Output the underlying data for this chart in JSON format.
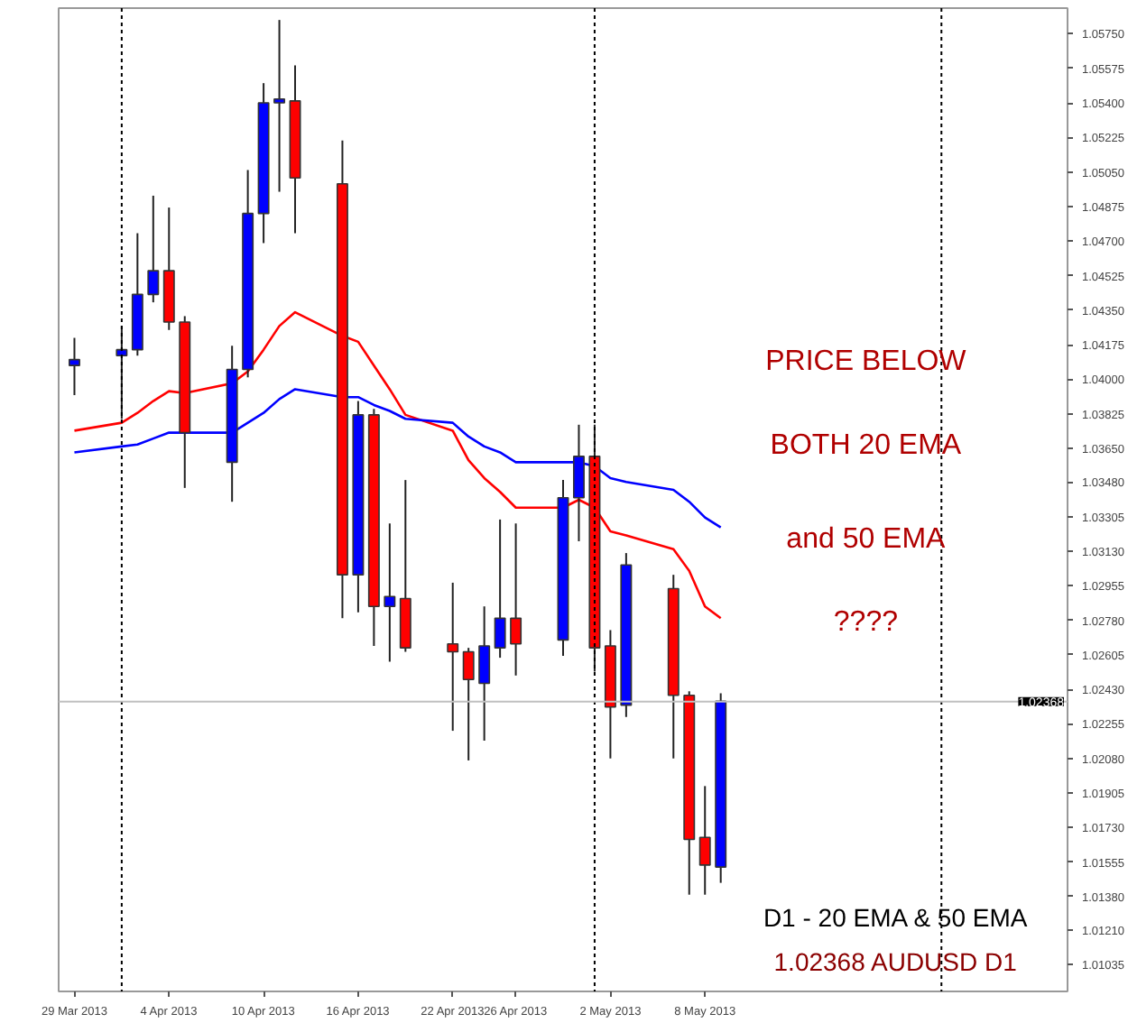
{
  "chart_data": {
    "type": "candlestick",
    "x": [
      "2013-03-29",
      "2013-04-01",
      "2013-04-02",
      "2013-04-03",
      "2013-04-04",
      "2013-04-05",
      "2013-04-08",
      "2013-04-09",
      "2013-04-10",
      "2013-04-11",
      "2013-04-12",
      "2013-04-15",
      "2013-04-16",
      "2013-04-17",
      "2013-04-18",
      "2013-04-19",
      "2013-04-22",
      "2013-04-23",
      "2013-04-24",
      "2013-04-25",
      "2013-04-26",
      "2013-04-29",
      "2013-04-30",
      "2013-05-01",
      "2013-05-02",
      "2013-05-03",
      "2013-05-06",
      "2013-05-07",
      "2013-05-08",
      "2013-05-09"
    ],
    "ohlc": [
      [
        1.0407,
        1.0421,
        1.0392,
        1.041
      ],
      [
        1.0412,
        1.0427,
        1.038,
        1.0415
      ],
      [
        1.0415,
        1.0474,
        1.0412,
        1.0443
      ],
      [
        1.0443,
        1.0493,
        1.0439,
        1.0455
      ],
      [
        1.0455,
        1.0487,
        1.0425,
        1.0429
      ],
      [
        1.0429,
        1.0432,
        1.0345,
        1.0373
      ],
      [
        1.0358,
        1.0417,
        1.0338,
        1.0405
      ],
      [
        1.0405,
        1.0506,
        1.0401,
        1.0484
      ],
      [
        1.0484,
        1.055,
        1.0469,
        1.054
      ],
      [
        1.054,
        1.0582,
        1.0495,
        1.0542
      ],
      [
        1.0541,
        1.0559,
        1.0474,
        1.0502
      ],
      [
        1.0499,
        1.0521,
        1.0279,
        1.0301
      ],
      [
        1.0301,
        1.0389,
        1.0282,
        1.0382
      ],
      [
        1.0382,
        1.0385,
        1.0265,
        1.0285
      ],
      [
        1.0285,
        1.0327,
        1.0257,
        1.029
      ],
      [
        1.0289,
        1.0349,
        1.0262,
        1.0264
      ],
      [
        1.0266,
        1.0297,
        1.0222,
        1.0262
      ],
      [
        1.0262,
        1.0264,
        1.0207,
        1.0248
      ],
      [
        1.0246,
        1.0285,
        1.0217,
        1.0265
      ],
      [
        1.0264,
        1.0329,
        1.0259,
        1.0279
      ],
      [
        1.0279,
        1.0327,
        1.025,
        1.0266
      ],
      [
        1.0268,
        1.0349,
        1.026,
        1.034
      ],
      [
        1.034,
        1.0377,
        1.0318,
        1.0361
      ],
      [
        1.0361,
        1.0377,
        1.0252,
        1.0264
      ],
      [
        1.0265,
        1.0273,
        1.0208,
        1.0234
      ],
      [
        1.0235,
        1.0312,
        1.0229,
        1.0306
      ],
      [
        1.0294,
        1.0301,
        1.0208,
        1.024
      ],
      [
        1.024,
        1.0242,
        1.0139,
        1.0167
      ],
      [
        1.0168,
        1.0194,
        1.0139,
        1.0154
      ],
      [
        1.0153,
        1.0241,
        1.0145,
        1.0237
      ]
    ],
    "colors": [
      "#0000ff",
      "#0000ff",
      "#0000ff",
      "#0000ff",
      "#ff0000",
      "#ff0000",
      "#0000ff",
      "#0000ff",
      "#0000ff",
      "#0000ff",
      "#ff0000",
      "#ff0000",
      "#0000ff",
      "#ff0000",
      "#0000ff",
      "#ff0000",
      "#ff0000",
      "#ff0000",
      "#0000ff",
      "#0000ff",
      "#ff0000",
      "#0000ff",
      "#0000ff",
      "#ff0000",
      "#ff0000",
      "#0000ff",
      "#ff0000",
      "#ff0000",
      "#ff0000",
      "#0000ff"
    ],
    "series": [
      {
        "type": "line",
        "color": "#ff0000",
        "values": [
          1.0374,
          1.0378,
          1.0383,
          1.0389,
          1.0394,
          1.0393,
          1.0398,
          1.0404,
          1.0415,
          1.0427,
          1.0434,
          1.0422,
          1.0419,
          1.0407,
          1.0395,
          1.0382,
          1.0374,
          1.0359,
          1.035,
          1.0343,
          1.0335,
          1.0335,
          1.0339,
          1.0335,
          1.0323,
          1.0321,
          1.0314,
          1.0303,
          1.0285,
          1.0279
        ]
      },
      {
        "type": "line",
        "color": "#0000ff",
        "values": [
          1.0363,
          1.0366,
          1.0367,
          1.037,
          1.0373,
          1.0373,
          1.0373,
          1.0378,
          1.0383,
          1.039,
          1.0395,
          1.0391,
          1.0391,
          1.0387,
          1.0384,
          1.038,
          1.0378,
          1.0371,
          1.0366,
          1.0363,
          1.0358,
          1.0358,
          1.0358,
          1.0356,
          1.035,
          1.0348,
          1.0344,
          1.0338,
          1.033,
          1.0325
        ]
      }
    ],
    "xlim": [
      "2013-03-28",
      "2013-05-31"
    ],
    "xticks": [
      {
        "value": "2013-03-29",
        "label": "29 Mar 2013"
      },
      {
        "value": "2013-04-04",
        "label": "4 Apr 2013"
      },
      {
        "value": "2013-04-10",
        "label": "10 Apr 2013"
      },
      {
        "value": "2013-04-16",
        "label": "16 Apr 2013"
      },
      {
        "value": "2013-04-22",
        "label": "22 Apr 2013"
      },
      {
        "value": "2013-04-26",
        "label": "26 Apr 2013"
      },
      {
        "value": "2013-05-02",
        "label": "2 May 2013"
      },
      {
        "value": "2013-05-08",
        "label": "8 May 2013"
      }
    ],
    "ylim": [
      1.009,
      1.0588
    ],
    "yticks": [
      {
        "value": 1.0575,
        "label": "1.05750"
      },
      {
        "value": 1.05575,
        "label": "1.05575"
      },
      {
        "value": 1.054,
        "label": "1.05400"
      },
      {
        "value": 1.05225,
        "label": "1.05225"
      },
      {
        "value": 1.0505,
        "label": "1.05050"
      },
      {
        "value": 1.04875,
        "label": "1.04875"
      },
      {
        "value": 1.047,
        "label": "1.04700"
      },
      {
        "value": 1.04525,
        "label": "1.04525"
      },
      {
        "value": 1.0435,
        "label": "1.04350"
      },
      {
        "value": 1.04175,
        "label": "1.04175"
      },
      {
        "value": 1.04,
        "label": "1.04000"
      },
      {
        "value": 1.03825,
        "label": "1.03825"
      },
      {
        "value": 1.0365,
        "label": "1.03650"
      },
      {
        "value": 1.0348,
        "label": "1.03480"
      },
      {
        "value": 1.03305,
        "label": "1.03305"
      },
      {
        "value": 1.0313,
        "label": "1.03130"
      },
      {
        "value": 1.02955,
        "label": "1.02955"
      },
      {
        "value": 1.0278,
        "label": "1.02780"
      },
      {
        "value": 1.02605,
        "label": "1.02605"
      },
      {
        "value": 1.0243,
        "label": "1.02430"
      },
      {
        "value": 1.02255,
        "label": "1.02255"
      },
      {
        "value": 1.0208,
        "label": "1.02080"
      },
      {
        "value": 1.01905,
        "label": "1.01905"
      },
      {
        "value": 1.0173,
        "label": "1.01730"
      },
      {
        "value": 1.01555,
        "label": "1.01555"
      },
      {
        "value": 1.0138,
        "label": "1.01380"
      },
      {
        "value": 1.0121,
        "label": "1.01210"
      },
      {
        "value": 1.01035,
        "label": "1.01035"
      }
    ],
    "ref_lines": [
      {
        "axis": "x",
        "value": "2013-04-01",
        "color": "#000000",
        "line_style": "dashed"
      },
      {
        "axis": "x",
        "value": "2013-05-01",
        "color": "#000000",
        "line_style": "dashed"
      },
      {
        "axis": "x",
        "value": "2013-05-23",
        "color": "#000000",
        "line_style": "dashed"
      },
      {
        "axis": "y",
        "value": 1.02368,
        "label": "1.02368",
        "color": "#c0c0c0",
        "line_style": "solid"
      }
    ],
    "annotations": [
      "PRICE BELOW",
      "BOTH 20 EMA",
      "and 50 EMA",
      "????",
      "D1 - 20 EMA & 50 EMA",
      "1.02368 AUDUSD D1"
    ],
    "grid": false
  }
}
